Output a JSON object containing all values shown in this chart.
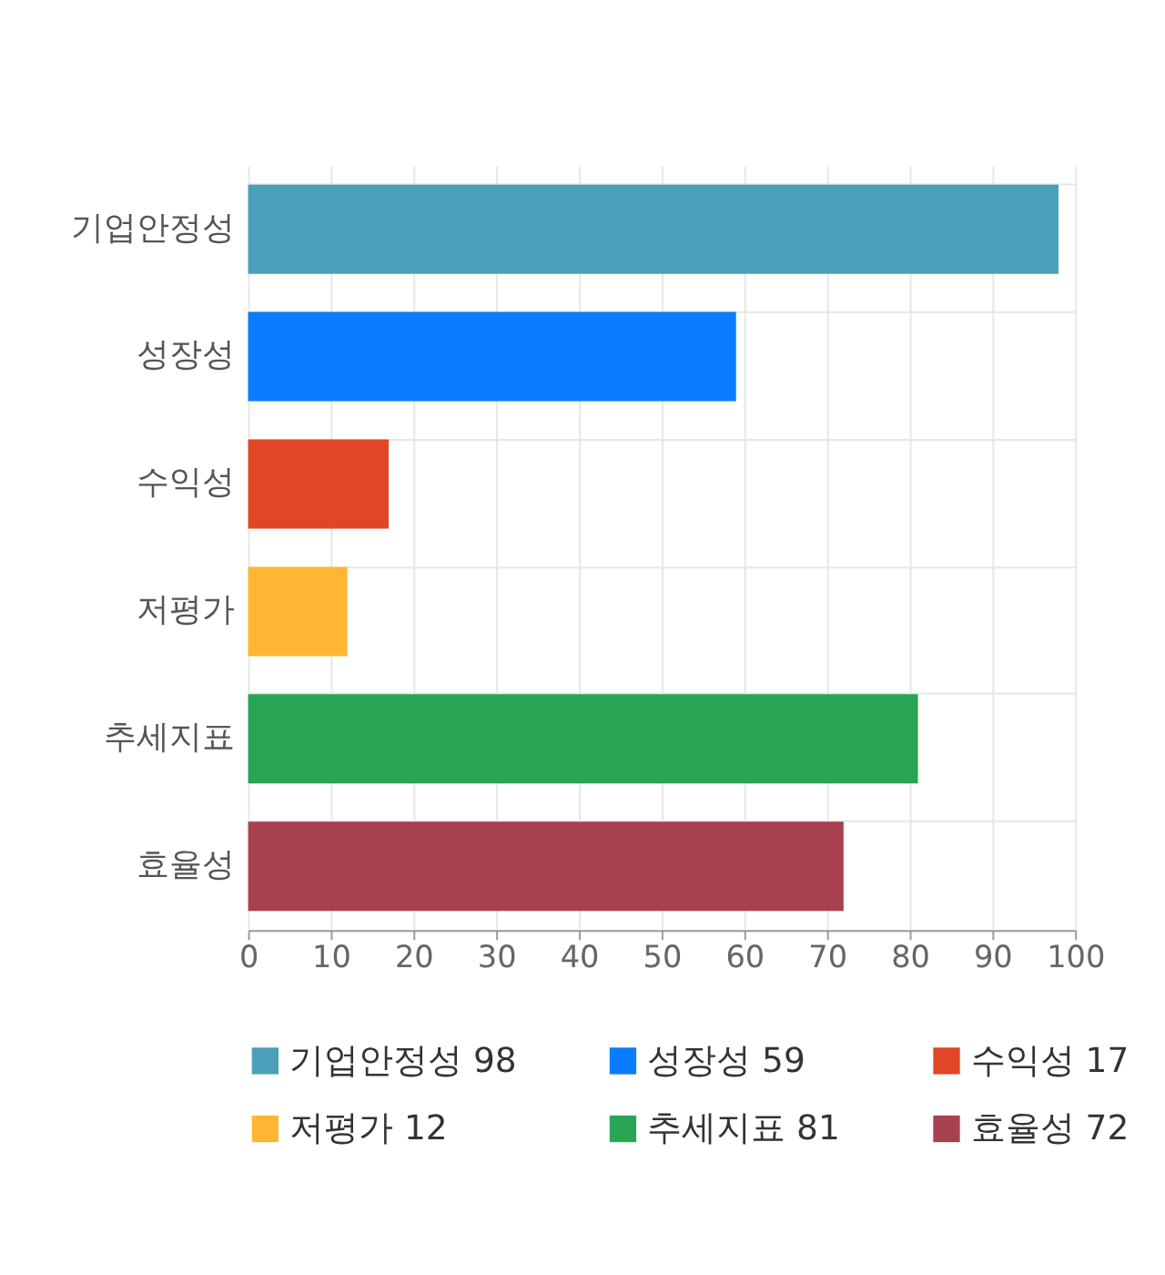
{
  "chart_data": {
    "type": "bar",
    "orientation": "horizontal",
    "categories": [
      "기업안정성",
      "성장성",
      "수익성",
      "저평가",
      "추세지표",
      "효율성"
    ],
    "series": [
      {
        "name": "기업안정성 98",
        "color": "#4aa0b9",
        "values": [
          98,
          null,
          null,
          null,
          null,
          null
        ]
      },
      {
        "name": "성장성 59",
        "color": "#0a7cff",
        "values": [
          null,
          59,
          null,
          null,
          null,
          null
        ]
      },
      {
        "name": "수익성 17",
        "color": "#e24625",
        "values": [
          null,
          null,
          17,
          null,
          null,
          null
        ]
      },
      {
        "name": "저평가 12",
        "color": "#ffb733",
        "values": [
          null,
          null,
          null,
          12,
          null,
          null
        ]
      },
      {
        "name": "추세지표 81",
        "color": "#28a655",
        "values": [
          null,
          null,
          null,
          null,
          81,
          null
        ]
      },
      {
        "name": "효율성 72",
        "color": "#a7404f",
        "values": [
          null,
          null,
          null,
          null,
          null,
          72
        ]
      }
    ],
    "xlim": [
      0,
      100
    ],
    "xticks": [
      0,
      10,
      20,
      30,
      40,
      50,
      60,
      70,
      80,
      90,
      100
    ],
    "grid": true,
    "legend": "bottom"
  }
}
